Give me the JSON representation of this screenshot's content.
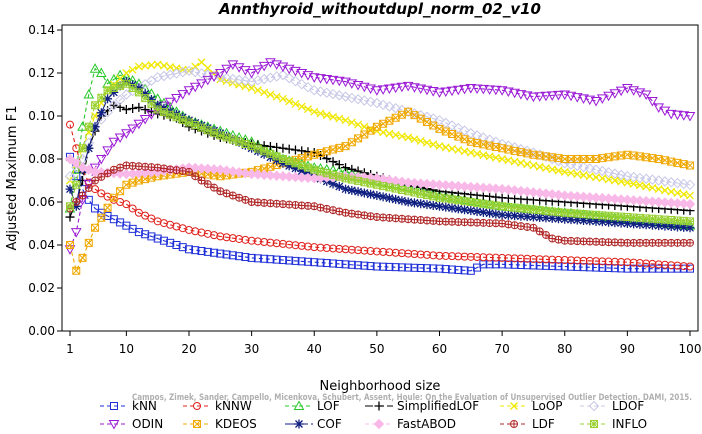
{
  "chart_data": {
    "type": "line",
    "title": "Annthyroid_withoutdupl_norm_02_v10",
    "xlabel": "Neighborhood size",
    "ylabel": "Adjusted Maximum F1",
    "xlim": [
      1,
      100
    ],
    "ylim": [
      0,
      0.14
    ],
    "x_ticks": [
      1,
      10,
      20,
      30,
      40,
      50,
      60,
      70,
      80,
      90,
      100
    ],
    "y_ticks": [
      "0.00",
      "0.02",
      "0.04",
      "0.06",
      "0.08",
      "0.10",
      "0.12",
      "0.14"
    ],
    "grid": false,
    "legend_position": "bottom",
    "watermark": "Campos, Zimek, Sander, Campello, Micenkova, Schubert, Assent, Houle: On the Evaluation of Unsupervised Outlier Detection. DAMI, 2015.",
    "series": [
      {
        "name": "kNN",
        "color": "#1f2fd8",
        "marker": "square",
        "dash": "4,3",
        "points": [
          [
            1,
            0.081
          ],
          [
            2,
            0.072
          ],
          [
            3,
            0.066
          ],
          [
            4,
            0.061
          ],
          [
            5,
            0.057
          ],
          [
            6,
            0.055
          ],
          [
            8,
            0.052
          ],
          [
            10,
            0.049
          ],
          [
            12,
            0.046
          ],
          [
            15,
            0.043
          ],
          [
            18,
            0.04
          ],
          [
            20,
            0.038
          ],
          [
            25,
            0.036
          ],
          [
            30,
            0.034
          ],
          [
            40,
            0.032
          ],
          [
            50,
            0.03
          ],
          [
            60,
            0.029
          ],
          [
            65,
            0.028
          ],
          [
            67,
            0.031
          ],
          [
            70,
            0.031
          ],
          [
            80,
            0.03
          ],
          [
            90,
            0.029
          ],
          [
            100,
            0.029
          ]
        ]
      },
      {
        "name": "kNNW",
        "color": "#e0201a",
        "marker": "circle",
        "dash": "4,3",
        "points": [
          [
            1,
            0.096
          ],
          [
            2,
            0.085
          ],
          [
            3,
            0.075
          ],
          [
            4,
            0.069
          ],
          [
            5,
            0.066
          ],
          [
            6,
            0.064
          ],
          [
            8,
            0.061
          ],
          [
            10,
            0.059
          ],
          [
            12,
            0.055
          ],
          [
            15,
            0.051
          ],
          [
            20,
            0.047
          ],
          [
            25,
            0.044
          ],
          [
            30,
            0.042
          ],
          [
            40,
            0.039
          ],
          [
            50,
            0.037
          ],
          [
            60,
            0.035
          ],
          [
            70,
            0.034
          ],
          [
            80,
            0.033
          ],
          [
            90,
            0.032
          ],
          [
            100,
            0.03
          ]
        ]
      },
      {
        "name": "LOF",
        "color": "#28c828",
        "marker": "triangle",
        "dash": "4,3",
        "points": [
          [
            1,
            0.057
          ],
          [
            2,
            0.075
          ],
          [
            3,
            0.095
          ],
          [
            4,
            0.11
          ],
          [
            5,
            0.122
          ],
          [
            6,
            0.12
          ],
          [
            7,
            0.115
          ],
          [
            8,
            0.117
          ],
          [
            9,
            0.119
          ],
          [
            10,
            0.118
          ],
          [
            12,
            0.115
          ],
          [
            15,
            0.108
          ],
          [
            18,
            0.102
          ],
          [
            20,
            0.098
          ],
          [
            25,
            0.093
          ],
          [
            30,
            0.088
          ],
          [
            35,
            0.08
          ],
          [
            40,
            0.076
          ],
          [
            45,
            0.074
          ],
          [
            50,
            0.07
          ],
          [
            55,
            0.067
          ],
          [
            60,
            0.063
          ],
          [
            70,
            0.058
          ],
          [
            80,
            0.055
          ],
          [
            90,
            0.052
          ],
          [
            100,
            0.049
          ]
        ]
      },
      {
        "name": "SimplifiedLOF",
        "color": "#000000",
        "marker": "plus",
        "dash": "8,3",
        "points": [
          [
            1,
            0.053
          ],
          [
            2,
            0.06
          ],
          [
            3,
            0.07
          ],
          [
            4,
            0.085
          ],
          [
            5,
            0.093
          ],
          [
            6,
            0.1
          ],
          [
            8,
            0.105
          ],
          [
            10,
            0.103
          ],
          [
            12,
            0.104
          ],
          [
            15,
            0.101
          ],
          [
            18,
            0.099
          ],
          [
            20,
            0.095
          ],
          [
            25,
            0.09
          ],
          [
            30,
            0.087
          ],
          [
            35,
            0.085
          ],
          [
            40,
            0.083
          ],
          [
            45,
            0.076
          ],
          [
            50,
            0.072
          ],
          [
            55,
            0.068
          ],
          [
            60,
            0.065
          ],
          [
            70,
            0.062
          ],
          [
            80,
            0.06
          ],
          [
            90,
            0.058
          ],
          [
            100,
            0.056
          ]
        ]
      },
      {
        "name": "LoOP",
        "color": "#f0e800",
        "marker": "x",
        "dash": "4,3",
        "points": [
          [
            1,
            0.07
          ],
          [
            3,
            0.085
          ],
          [
            5,
            0.1
          ],
          [
            7,
            0.112
          ],
          [
            10,
            0.12
          ],
          [
            12,
            0.123
          ],
          [
            15,
            0.124
          ],
          [
            20,
            0.121
          ],
          [
            22,
            0.125
          ],
          [
            25,
            0.117
          ],
          [
            30,
            0.113
          ],
          [
            35,
            0.108
          ],
          [
            40,
            0.102
          ],
          [
            45,
            0.098
          ],
          [
            50,
            0.093
          ],
          [
            55,
            0.09
          ],
          [
            60,
            0.086
          ],
          [
            70,
            0.08
          ],
          [
            80,
            0.074
          ],
          [
            90,
            0.069
          ],
          [
            100,
            0.063
          ]
        ]
      },
      {
        "name": "LDOF",
        "color": "#c8c8e8",
        "marker": "diamond",
        "dash": "4,3",
        "points": [
          [
            1,
            0.072
          ],
          [
            3,
            0.08
          ],
          [
            5,
            0.095
          ],
          [
            8,
            0.105
          ],
          [
            10,
            0.11
          ],
          [
            15,
            0.118
          ],
          [
            20,
            0.121
          ],
          [
            25,
            0.118
          ],
          [
            30,
            0.116
          ],
          [
            35,
            0.119
          ],
          [
            40,
            0.112
          ],
          [
            45,
            0.109
          ],
          [
            50,
            0.106
          ],
          [
            55,
            0.102
          ],
          [
            60,
            0.098
          ],
          [
            65,
            0.092
          ],
          [
            70,
            0.087
          ],
          [
            75,
            0.083
          ],
          [
            80,
            0.078
          ],
          [
            90,
            0.072
          ],
          [
            100,
            0.068
          ]
        ]
      },
      {
        "name": "ODIN",
        "color": "#9b1ad6",
        "marker": "triangle-down",
        "dash": "4,3",
        "points": [
          [
            1,
            0.038
          ],
          [
            2,
            0.046
          ],
          [
            3,
            0.061
          ],
          [
            5,
            0.076
          ],
          [
            8,
            0.088
          ],
          [
            10,
            0.092
          ],
          [
            15,
            0.103
          ],
          [
            20,
            0.112
          ],
          [
            25,
            0.12
          ],
          [
            27,
            0.124
          ],
          [
            30,
            0.12
          ],
          [
            33,
            0.125
          ],
          [
            40,
            0.118
          ],
          [
            45,
            0.116
          ],
          [
            50,
            0.112
          ],
          [
            55,
            0.114
          ],
          [
            60,
            0.111
          ],
          [
            65,
            0.113
          ],
          [
            70,
            0.112
          ],
          [
            75,
            0.109
          ],
          [
            80,
            0.11
          ],
          [
            85,
            0.107
          ],
          [
            90,
            0.113
          ],
          [
            93,
            0.11
          ],
          [
            95,
            0.104
          ],
          [
            97,
            0.101
          ],
          [
            100,
            0.1
          ]
        ]
      },
      {
        "name": "KDEOS",
        "color": "#f0a800",
        "marker": "square-x",
        "dash": "4,3",
        "points": [
          [
            1,
            0.04
          ],
          [
            2,
            0.028
          ],
          [
            3,
            0.034
          ],
          [
            5,
            0.048
          ],
          [
            8,
            0.062
          ],
          [
            10,
            0.068
          ],
          [
            12,
            0.07
          ],
          [
            15,
            0.072
          ],
          [
            20,
            0.074
          ],
          [
            25,
            0.072
          ],
          [
            30,
            0.074
          ],
          [
            35,
            0.078
          ],
          [
            40,
            0.082
          ],
          [
            45,
            0.086
          ],
          [
            50,
            0.095
          ],
          [
            55,
            0.102
          ],
          [
            60,
            0.094
          ],
          [
            65,
            0.088
          ],
          [
            70,
            0.085
          ],
          [
            75,
            0.082
          ],
          [
            80,
            0.08
          ],
          [
            85,
            0.08
          ],
          [
            90,
            0.082
          ],
          [
            95,
            0.08
          ],
          [
            100,
            0.077
          ]
        ]
      },
      {
        "name": "COF",
        "color": "#102080",
        "marker": "asterisk",
        "dash": "10,3",
        "points": [
          [
            1,
            0.066
          ],
          [
            2,
            0.058
          ],
          [
            3,
            0.075
          ],
          [
            5,
            0.095
          ],
          [
            7,
            0.108
          ],
          [
            9,
            0.114
          ],
          [
            10,
            0.116
          ],
          [
            12,
            0.113
          ],
          [
            15,
            0.105
          ],
          [
            20,
            0.098
          ],
          [
            25,
            0.092
          ],
          [
            30,
            0.085
          ],
          [
            35,
            0.078
          ],
          [
            40,
            0.072
          ],
          [
            45,
            0.066
          ],
          [
            50,
            0.063
          ],
          [
            55,
            0.06
          ],
          [
            60,
            0.058
          ],
          [
            70,
            0.054
          ],
          [
            80,
            0.052
          ],
          [
            90,
            0.05
          ],
          [
            100,
            0.048
          ]
        ]
      },
      {
        "name": "FastABOD",
        "color": "#f8b8e8",
        "marker": "diamond-filled",
        "dash": "4,3",
        "points": [
          [
            1,
            0.08
          ],
          [
            3,
            0.076
          ],
          [
            5,
            0.074
          ],
          [
            10,
            0.073
          ],
          [
            15,
            0.074
          ],
          [
            20,
            0.076
          ],
          [
            25,
            0.075
          ],
          [
            30,
            0.073
          ],
          [
            35,
            0.072
          ],
          [
            40,
            0.071
          ],
          [
            45,
            0.072
          ],
          [
            50,
            0.071
          ],
          [
            55,
            0.069
          ],
          [
            60,
            0.068
          ],
          [
            70,
            0.066
          ],
          [
            80,
            0.063
          ],
          [
            90,
            0.061
          ],
          [
            100,
            0.059
          ]
        ]
      },
      {
        "name": "LDF",
        "color": "#b02828",
        "marker": "circle-plus",
        "dash": "4,3",
        "points": [
          [
            1,
            0.057
          ],
          [
            3,
            0.063
          ],
          [
            5,
            0.07
          ],
          [
            8,
            0.075
          ],
          [
            10,
            0.077
          ],
          [
            15,
            0.076
          ],
          [
            20,
            0.074
          ],
          [
            22,
            0.07
          ],
          [
            25,
            0.065
          ],
          [
            30,
            0.06
          ],
          [
            35,
            0.059
          ],
          [
            40,
            0.058
          ],
          [
            45,
            0.055
          ],
          [
            50,
            0.053
          ],
          [
            55,
            0.052
          ],
          [
            60,
            0.051
          ],
          [
            70,
            0.05
          ],
          [
            75,
            0.048
          ],
          [
            78,
            0.043
          ],
          [
            80,
            0.042
          ],
          [
            90,
            0.041
          ],
          [
            100,
            0.041
          ]
        ]
      },
      {
        "name": "INFLO",
        "color": "#98d030",
        "marker": "square-star",
        "dash": "4,3",
        "points": [
          [
            1,
            0.058
          ],
          [
            2,
            0.068
          ],
          [
            3,
            0.085
          ],
          [
            5,
            0.105
          ],
          [
            7,
            0.112
          ],
          [
            10,
            0.115
          ],
          [
            12,
            0.111
          ],
          [
            15,
            0.103
          ],
          [
            20,
            0.097
          ],
          [
            25,
            0.091
          ],
          [
            30,
            0.086
          ],
          [
            35,
            0.08
          ],
          [
            40,
            0.075
          ],
          [
            45,
            0.071
          ],
          [
            50,
            0.068
          ],
          [
            55,
            0.065
          ],
          [
            60,
            0.062
          ],
          [
            70,
            0.058
          ],
          [
            80,
            0.055
          ],
          [
            90,
            0.053
          ],
          [
            100,
            0.051
          ]
        ]
      }
    ]
  }
}
